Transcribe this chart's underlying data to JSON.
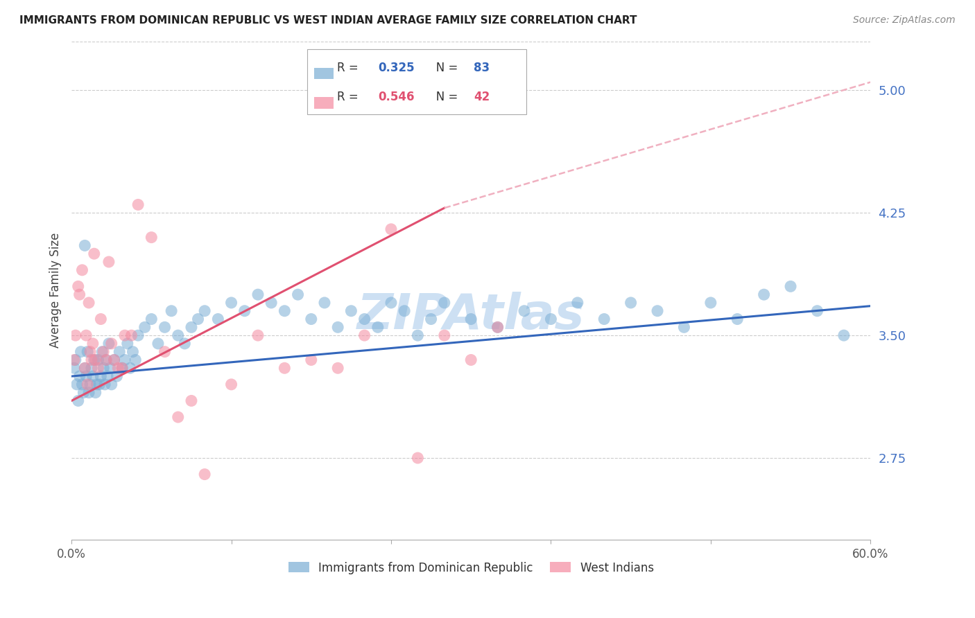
{
  "title": "IMMIGRANTS FROM DOMINICAN REPUBLIC VS WEST INDIAN AVERAGE FAMILY SIZE CORRELATION CHART",
  "source": "Source: ZipAtlas.com",
  "ylabel": "Average Family Size",
  "legend_label1": "Immigrants from Dominican Republic",
  "legend_label2": "West Indians",
  "R1": 0.325,
  "N1": 83,
  "R2": 0.546,
  "N2": 42,
  "xlim": [
    0.0,
    0.6
  ],
  "ylim": [
    2.25,
    5.3
  ],
  "yticks": [
    2.75,
    3.5,
    4.25,
    5.0
  ],
  "xticks": [
    0.0,
    0.12,
    0.24,
    0.36,
    0.48,
    0.6
  ],
  "xtick_labels": [
    "0.0%",
    "",
    "",
    "",
    "",
    "60.0%"
  ],
  "title_color": "#222222",
  "source_color": "#888888",
  "right_axis_tick_color": "#4472c4",
  "blue_color": "#7aadd4",
  "pink_color": "#f48aa0",
  "blue_line_color": "#3366bb",
  "pink_line_color": "#e05070",
  "pink_dash_color": "#f0b0c0",
  "grid_color": "#cccccc",
  "watermark_color": "#b8d4ee",
  "blue_scatter_x": [
    0.002,
    0.003,
    0.004,
    0.005,
    0.006,
    0.007,
    0.008,
    0.009,
    0.01,
    0.011,
    0.012,
    0.013,
    0.014,
    0.015,
    0.016,
    0.017,
    0.018,
    0.019,
    0.02,
    0.021,
    0.022,
    0.023,
    0.024,
    0.025,
    0.026,
    0.027,
    0.028,
    0.029,
    0.03,
    0.032,
    0.034,
    0.036,
    0.038,
    0.04,
    0.042,
    0.044,
    0.046,
    0.048,
    0.05,
    0.055,
    0.06,
    0.065,
    0.07,
    0.075,
    0.08,
    0.085,
    0.09,
    0.095,
    0.1,
    0.11,
    0.12,
    0.13,
    0.14,
    0.15,
    0.16,
    0.17,
    0.18,
    0.19,
    0.2,
    0.21,
    0.22,
    0.23,
    0.24,
    0.25,
    0.26,
    0.27,
    0.28,
    0.3,
    0.32,
    0.34,
    0.36,
    0.38,
    0.4,
    0.42,
    0.44,
    0.46,
    0.48,
    0.5,
    0.52,
    0.54,
    0.56,
    0.58,
    0.01
  ],
  "blue_scatter_y": [
    3.3,
    3.35,
    3.2,
    3.1,
    3.25,
    3.4,
    3.2,
    3.15,
    3.3,
    3.25,
    3.4,
    3.15,
    3.2,
    3.3,
    3.25,
    3.35,
    3.15,
    3.2,
    3.35,
    3.2,
    3.25,
    3.4,
    3.3,
    3.2,
    3.35,
    3.25,
    3.45,
    3.3,
    3.2,
    3.35,
    3.25,
    3.4,
    3.3,
    3.35,
    3.45,
    3.3,
    3.4,
    3.35,
    3.5,
    3.55,
    3.6,
    3.45,
    3.55,
    3.65,
    3.5,
    3.45,
    3.55,
    3.6,
    3.65,
    3.6,
    3.7,
    3.65,
    3.75,
    3.7,
    3.65,
    3.75,
    3.6,
    3.7,
    3.55,
    3.65,
    3.6,
    3.55,
    3.7,
    3.65,
    3.5,
    3.6,
    3.7,
    3.6,
    3.55,
    3.65,
    3.6,
    3.7,
    3.6,
    3.7,
    3.65,
    3.55,
    3.7,
    3.6,
    3.75,
    3.8,
    3.65,
    3.5,
    4.05
  ],
  "pink_scatter_x": [
    0.002,
    0.003,
    0.005,
    0.006,
    0.008,
    0.01,
    0.011,
    0.012,
    0.013,
    0.014,
    0.015,
    0.016,
    0.017,
    0.018,
    0.02,
    0.022,
    0.024,
    0.026,
    0.028,
    0.03,
    0.032,
    0.035,
    0.038,
    0.04,
    0.045,
    0.05,
    0.06,
    0.07,
    0.08,
    0.09,
    0.1,
    0.12,
    0.14,
    0.16,
    0.18,
    0.2,
    0.22,
    0.24,
    0.26,
    0.28,
    0.3,
    0.32
  ],
  "pink_scatter_y": [
    3.35,
    3.5,
    3.8,
    3.75,
    3.9,
    3.3,
    3.5,
    3.2,
    3.7,
    3.4,
    3.35,
    3.45,
    4.0,
    3.35,
    3.3,
    3.6,
    3.4,
    3.35,
    3.95,
    3.45,
    3.35,
    3.3,
    3.3,
    3.5,
    3.5,
    4.3,
    4.1,
    3.4,
    3.0,
    3.1,
    2.65,
    3.2,
    3.5,
    3.3,
    3.35,
    3.3,
    3.5,
    4.15,
    2.75,
    3.5,
    3.35,
    3.55
  ],
  "blue_trend_x": [
    0.0,
    0.6
  ],
  "blue_trend_y": [
    3.25,
    3.68
  ],
  "pink_solid_trend_x": [
    0.0,
    0.28
  ],
  "pink_solid_trend_y": [
    3.1,
    4.28
  ],
  "pink_dash_trend_x": [
    0.28,
    0.6
  ],
  "pink_dash_trend_y": [
    4.28,
    5.05
  ]
}
